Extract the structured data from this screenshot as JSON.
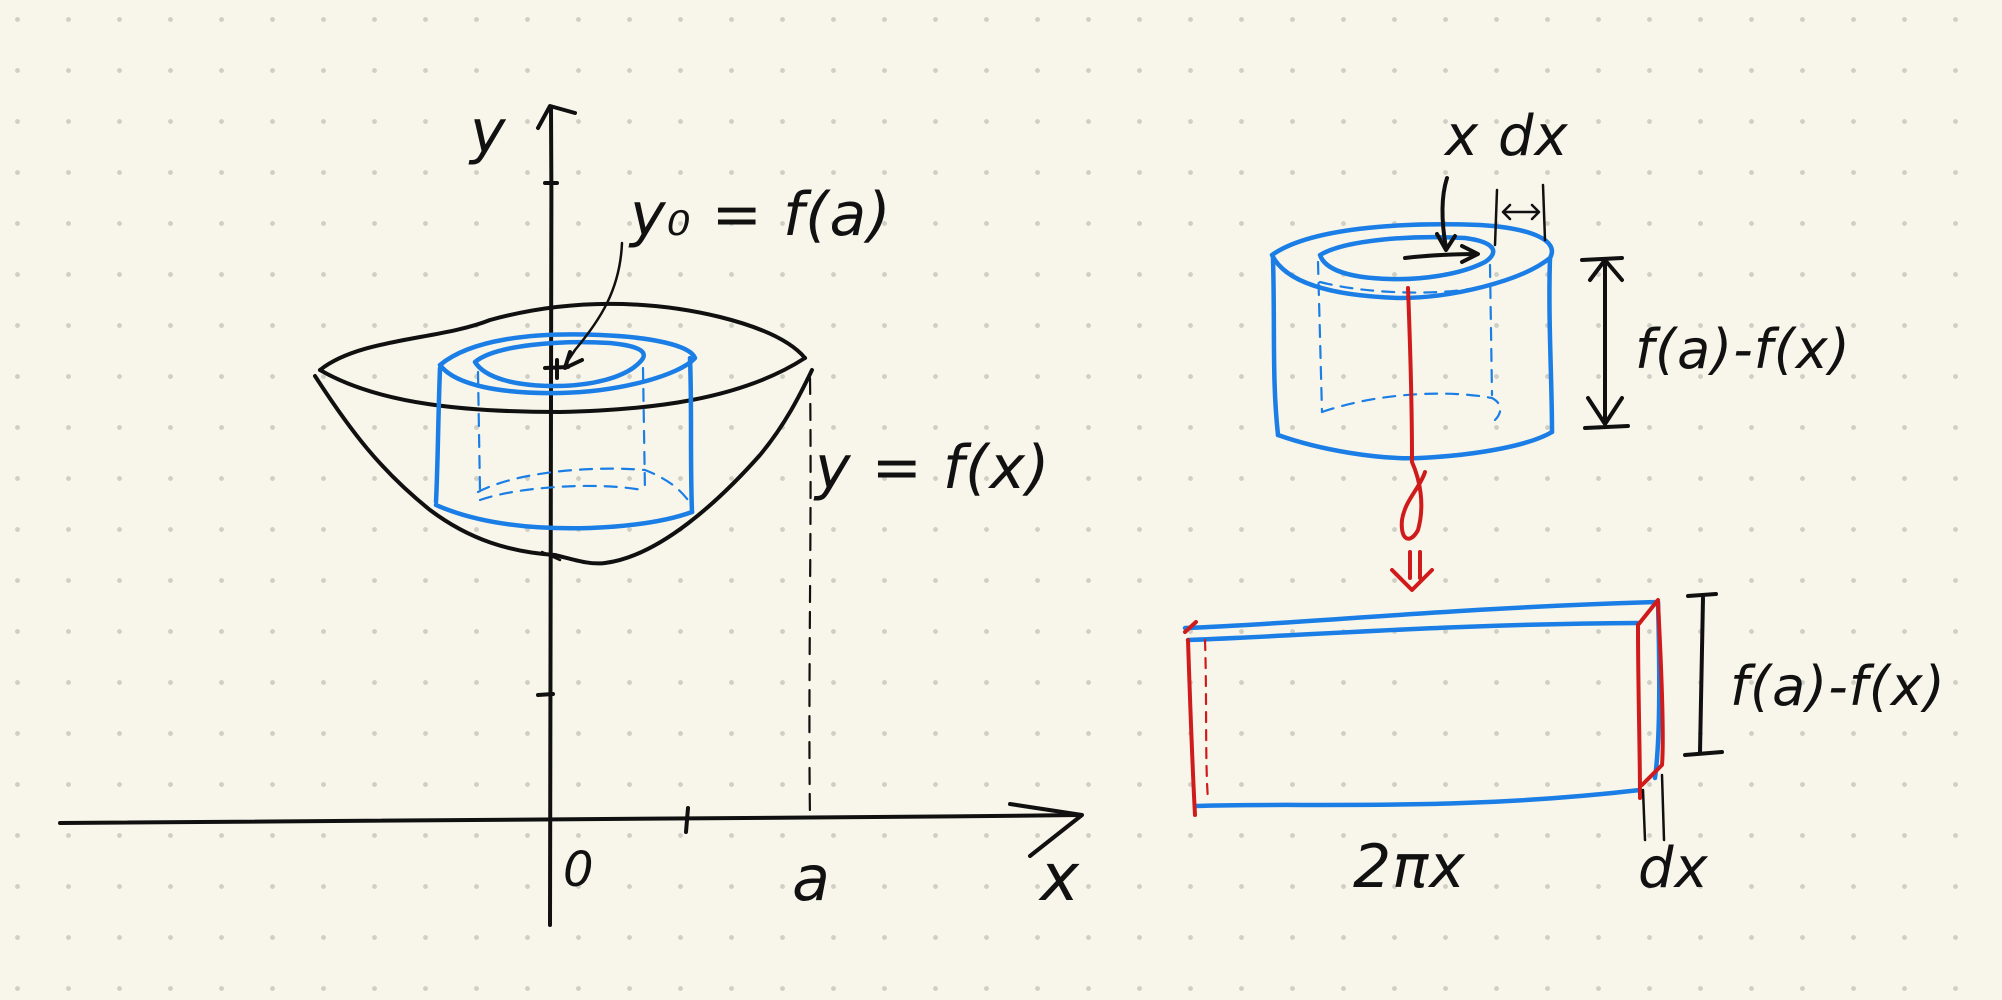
{
  "labels": {
    "y_axis": "y",
    "x_axis": "x",
    "origin": "0",
    "a_tick": "a",
    "y0_eq": "y₀ = f(a)",
    "curve": "y = f(x)",
    "shell_top": "x dx",
    "height1": "f(a)-f(x)",
    "height2": "f(a)-f(x)",
    "width": "2πx",
    "thickness": "dx"
  },
  "colors": {
    "ink": "#101010",
    "shell": "#1a7ee6",
    "cut": "#cf1b1b",
    "paper": "#f8f6ea"
  }
}
